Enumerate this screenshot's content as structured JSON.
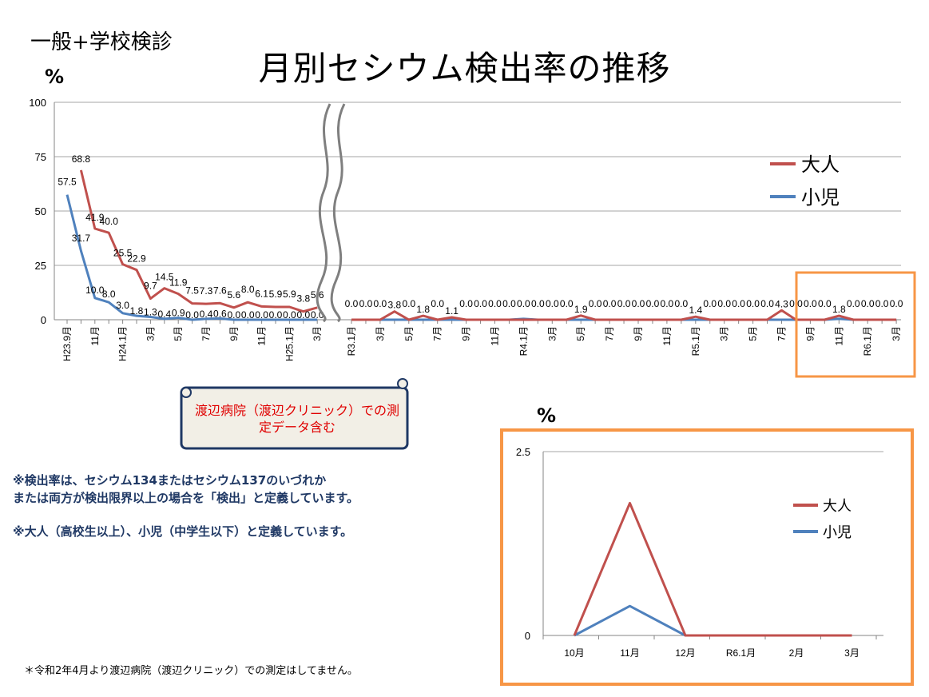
{
  "header": {
    "subtitle": "一般+学校検診",
    "title": "月別セシウム検出率の推移",
    "unit_main": "%",
    "unit_inset": "%"
  },
  "callout": {
    "text": "渡辺病院（渡辺クリニック）での測定データ含む"
  },
  "notes": {
    "line1": "※検出率は、セシウム134またはセシウム137のいづれか",
    "line2": "または両方が検出限界以上の場合を「検出」と定義しています。",
    "line3": "※大人（高校生以上）、小児（中学生以下）と定義しています。"
  },
  "footnote": "＊令和2年4月より渡辺病院（渡辺クリニック）での測定はしてません。",
  "colors": {
    "adult": "#c0504d",
    "child": "#4f81bd",
    "highlight": "#f79646",
    "grid": "#a6a6a6",
    "callout_border": "#1f3864",
    "callout_fill": "#f2efe6"
  },
  "chart_data": [
    {
      "type": "line",
      "ylim": [
        0,
        100
      ],
      "yticks": [
        "100",
        "75",
        "50",
        "25",
        "0"
      ],
      "legend": [
        "大人",
        "小児"
      ],
      "legend_position": "right",
      "axis_break": "between 3月 and R3.1月",
      "segments": [
        {
          "x_labels": [
            "H23.9月",
            "",
            "11月",
            "",
            "H24.1月",
            "",
            "3月",
            "",
            "5月",
            "",
            "7月",
            "",
            "9月",
            "",
            "11月",
            "",
            "H25.1月",
            "",
            "3月"
          ],
          "series": [
            {
              "name": "大人",
              "values": [
                null,
                68.8,
                41.9,
                40.0,
                25.5,
                22.9,
                9.7,
                14.5,
                11.9,
                7.5,
                7.3,
                7.6,
                5.6,
                8.0,
                6.1,
                5.9,
                5.9,
                3.8,
                5.6
              ]
            },
            {
              "name": "小児",
              "values": [
                57.5,
                31.7,
                10.0,
                8.0,
                3.0,
                1.8,
                1.3,
                0.4,
                0.9,
                0.0,
                0.4,
                0.6,
                0.0,
                0.0,
                0.0,
                0.0,
                0.0,
                0.0,
                0.0
              ]
            }
          ],
          "data_labels": {
            "大人": [
              "",
              "68.8",
              "41.9",
              "40.0",
              "25.5",
              "22.9",
              "9.7",
              "14.5",
              "11.9",
              "7.5",
              "7.3",
              "7.6",
              "5.6",
              "8.0",
              "6.1",
              "5.9",
              "5.9",
              "3.8",
              "5.6"
            ],
            "小児": [
              "57.5",
              "31.7",
              "10.0",
              "8.0",
              "3.0",
              "1.8",
              "1.3",
              "0.4",
              "0.9",
              "0.0",
              "0.4",
              "0.6",
              "0.0",
              "0.0",
              "0.0",
              "0.0",
              "0.0",
              "0.0",
              "0.0"
            ]
          }
        },
        {
          "x_labels": [
            "R3.1月",
            "",
            "3月",
            "",
            "5月",
            "",
            "7月",
            "",
            "9月",
            "",
            "11月",
            "",
            "R4.1月",
            "",
            "3月",
            "",
            "5月",
            "",
            "7月",
            "",
            "9月",
            "",
            "11月",
            "",
            "R5.1月",
            "",
            "3月",
            "",
            "5月",
            "",
            "7月",
            "",
            "9月",
            "",
            "11月",
            "",
            "R6.1月",
            "",
            "3月"
          ],
          "series": [
            {
              "name": "大人",
              "values": [
                0,
                0,
                0,
                3.8,
                0,
                1.8,
                0,
                1.1,
                0,
                0,
                0,
                0,
                0,
                0,
                0,
                0,
                1.9,
                0,
                0,
                0,
                0,
                0,
                0,
                0,
                1.4,
                0,
                0,
                0,
                0,
                0,
                4.3,
                0,
                0,
                0,
                1.8,
                0,
                0,
                0,
                0
              ]
            },
            {
              "name": "小児",
              "values": [
                0,
                0,
                0,
                0,
                0,
                0,
                0,
                0,
                0,
                0,
                0,
                0,
                0.4,
                0,
                0,
                0,
                0,
                0,
                0,
                0,
                0,
                0,
                0,
                0,
                0,
                0,
                0,
                0,
                0,
                0,
                0,
                0,
                0,
                0,
                0.4,
                0,
                0,
                0,
                0
              ]
            }
          ],
          "data_labels": {
            "大人": [
              "0.0",
              "0.0",
              "0.0",
              "3.8",
              "0.0",
              "1.8",
              "0.0",
              "1.1",
              "0.0",
              "0.0",
              "0.0",
              "0.0",
              "0.0",
              "0.0",
              "0.0",
              "0.0",
              "1.9",
              "0.0",
              "0.0",
              "0.0",
              "0.0",
              "0.0",
              "0.0",
              "0.0",
              "1.4",
              "0.0",
              "0.0",
              "0.0",
              "0.0",
              "0.0",
              "4.3",
              "0.0",
              "0.0",
              "0.0",
              "1.8",
              "0.0",
              "0.0",
              "0.0",
              "0.0"
            ]
          }
        }
      ]
    },
    {
      "type": "line",
      "categories": [
        "10月",
        "11月",
        "12月",
        "R6.1月",
        "2月",
        "3月"
      ],
      "ylim": [
        0,
        2.5
      ],
      "yticks": [
        "2.5",
        "0"
      ],
      "legend": [
        "大人",
        "小児"
      ],
      "legend_position": "right",
      "series": [
        {
          "name": "大人",
          "values": [
            0,
            1.8,
            0,
            0,
            0,
            0
          ]
        },
        {
          "name": "小児",
          "values": [
            0,
            0.4,
            0,
            0,
            0,
            0
          ]
        }
      ]
    }
  ]
}
